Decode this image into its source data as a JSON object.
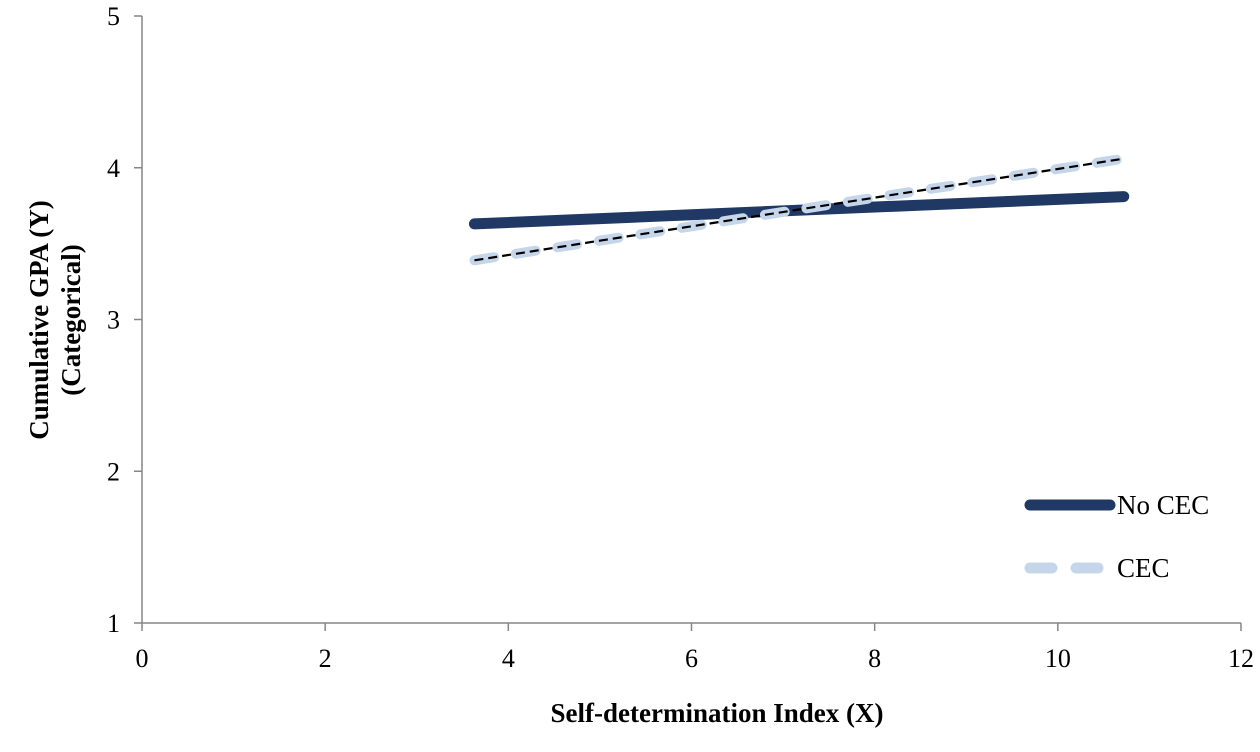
{
  "chart_data": {
    "type": "line",
    "title": "",
    "xlabel": "Self-determination Index (X)",
    "ylabel": [
      "Cumulative GPA (Y)",
      "(Categorical)"
    ],
    "xlim": [
      0,
      12
    ],
    "ylim": [
      1,
      5
    ],
    "x_ticks": [
      0,
      2,
      4,
      6,
      8,
      10,
      12
    ],
    "y_ticks": [
      1,
      2,
      3,
      4,
      5
    ],
    "grid": false,
    "legend_position": "bottom-right",
    "series": [
      {
        "name": "No CEC",
        "style": "solid",
        "color": "#1f3864",
        "points": [
          [
            3.63,
            3.63
          ],
          [
            10.72,
            3.81
          ]
        ]
      },
      {
        "name": "CEC",
        "style": "dashed",
        "color": "#c5d6ea",
        "points": [
          [
            3.63,
            3.39
          ],
          [
            10.72,
            4.06
          ]
        ]
      }
    ],
    "trendline": {
      "style": "dashed",
      "color": "#000000",
      "points": [
        [
          3.63,
          3.39
        ],
        [
          10.72,
          4.06
        ]
      ]
    }
  }
}
